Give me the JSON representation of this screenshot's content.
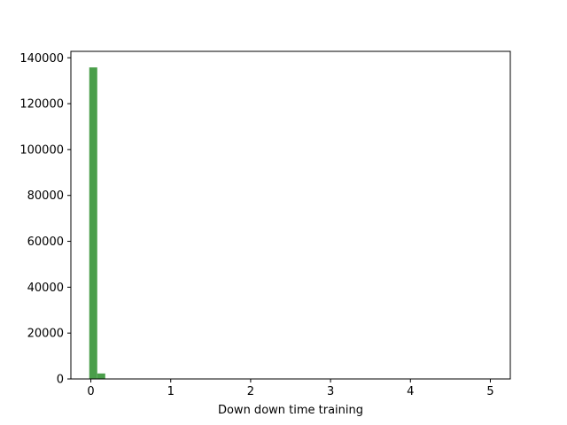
{
  "chart_data": {
    "type": "bar",
    "title": "",
    "xlabel": "Down down time training",
    "ylabel": "",
    "xlim": [
      -0.25,
      5.25
    ],
    "ylim": [
      0,
      142800
    ],
    "xticks": [
      0,
      1,
      2,
      3,
      4,
      5
    ],
    "yticks": [
      0,
      20000,
      40000,
      60000,
      80000,
      100000,
      120000,
      140000
    ],
    "grid": false,
    "legend": "none",
    "bar_color": "#4a9e4a",
    "bins": [
      {
        "x0": -0.02,
        "x1": 0.08,
        "value": 135800
      },
      {
        "x0": 0.08,
        "x1": 0.18,
        "value": 2400
      }
    ]
  }
}
